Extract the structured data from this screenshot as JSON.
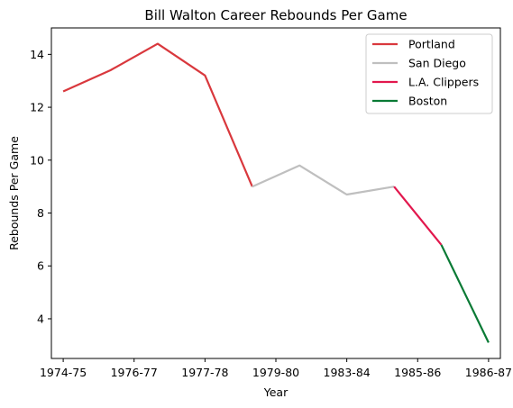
{
  "chart_data": {
    "type": "line",
    "title": "Bill Walton Career Rebounds Per Game",
    "xlabel": "Year",
    "ylabel": "Rebounds Per Game",
    "x_tick_labels": [
      "1974-75",
      "1976-77",
      "1977-78",
      "1979-80",
      "1983-84",
      "1985-86",
      "1986-87"
    ],
    "y_ticks": [
      4,
      6,
      8,
      10,
      12,
      14
    ],
    "xlim": [
      -0.25,
      9.25
    ],
    "ylim": [
      2.5,
      15.0
    ],
    "grid": false,
    "legend_position": "top-right",
    "series": [
      {
        "name": "Portland",
        "color": "#d9383d",
        "x": [
          0,
          1,
          2,
          3,
          4
        ],
        "y": [
          12.6,
          13.4,
          14.4,
          13.2,
          9.0
        ]
      },
      {
        "name": "San Diego",
        "color": "#bfbfbf",
        "x": [
          4,
          5,
          6,
          7
        ],
        "y": [
          9.0,
          9.8,
          8.7,
          9.0
        ]
      },
      {
        "name": "L.A. Clippers",
        "color": "#e2174d",
        "x": [
          7,
          8
        ],
        "y": [
          9.0,
          6.8
        ]
      },
      {
        "name": "Boston",
        "color": "#0a7a35",
        "x": [
          8,
          9
        ],
        "y": [
          6.8,
          3.1
        ]
      }
    ]
  }
}
